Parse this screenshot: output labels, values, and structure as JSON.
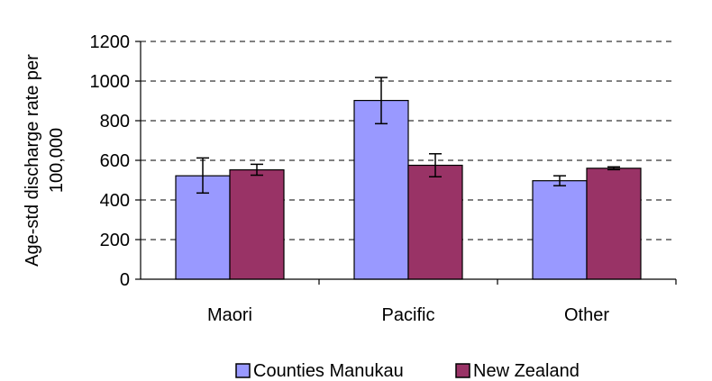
{
  "chart_data": {
    "type": "bar",
    "title": "",
    "xlabel": "",
    "ylabel": "Age-std discharge rate per 100,000",
    "ylabel_lines": [
      "Age-std discharge rate per",
      "100,000"
    ],
    "ylim": [
      0,
      1200
    ],
    "yticks": [
      0,
      200,
      400,
      600,
      800,
      1000,
      1200
    ],
    "grid": "horizontal dashed",
    "legend_position": "bottom",
    "categories": [
      "Maori",
      "Pacific",
      "Other"
    ],
    "series": [
      {
        "name": "Counties Manukau",
        "color": "#9999ff",
        "values": [
          522,
          902,
          497
        ],
        "error_low": [
          435,
          785,
          472
        ],
        "error_high": [
          612,
          1018,
          522
        ]
      },
      {
        "name": "New Zealand",
        "color": "#993366",
        "values": [
          552,
          575,
          560
        ],
        "error_low": [
          525,
          517,
          553
        ],
        "error_high": [
          580,
          633,
          567
        ]
      }
    ]
  }
}
